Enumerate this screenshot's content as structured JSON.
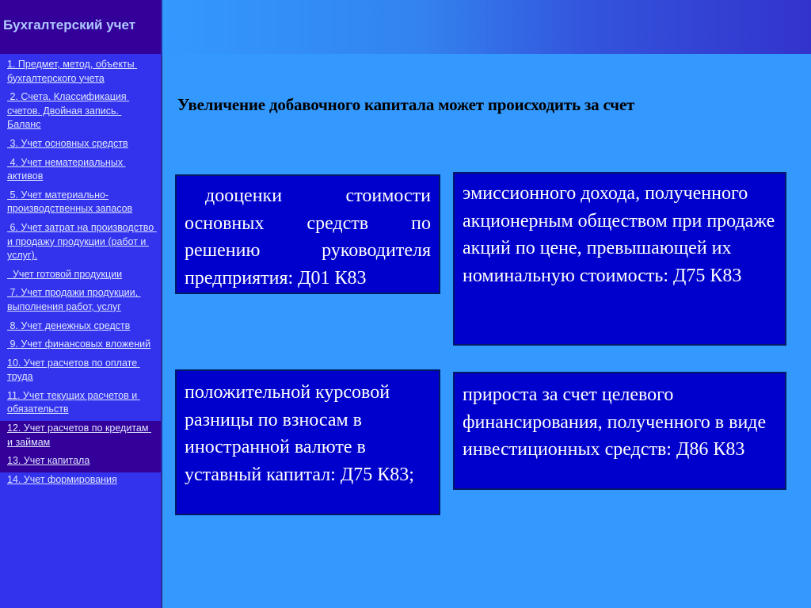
{
  "sidebar": {
    "title": "Бухгалтерский учет",
    "items": [
      {
        "label": "1. Предмет, метод, объекты бухгалтерского учета"
      },
      {
        "label": " 2. Счета. Классификация счетов. Двойная запись. Баланс"
      },
      {
        "label": " 3. Учет основных средств"
      },
      {
        "label": " 4. Учет нематериальных активов"
      },
      {
        "label": " 5. Учет материально-производственных запасов"
      },
      {
        "label": " 6. Учет затрат на производство и продажу продукции (работ и услуг)."
      },
      {
        "label": "  Учет готовой продукции"
      },
      {
        "label": " 7. Учет продажи продукции, выполнения работ, услуг"
      },
      {
        "label": " 8. Учет денежных средств"
      },
      {
        "label": " 9. Учет финансовых вложений"
      },
      {
        "label": "10. Учет расчетов по оплате труда"
      },
      {
        "label": "11. Учет текущих расчетов и обязательств"
      },
      {
        "label": "12. Учет расчетов по кредитам и займам",
        "active": true
      },
      {
        "label": "13. Учет капитала",
        "active": true
      },
      {
        "label": "14. Учет формирования"
      }
    ]
  },
  "main": {
    "title": "Увеличение добавочного капитала может происходить за счет",
    "boxes": [
      {
        "text": "дооценки стоимости основных средств по решению руководителя предприятия: Д01   К83"
      },
      {
        "text": "эмиссионного дохода, полученного акционерным обществом при продаже акций по цене, превышающей их номинальную стоимость: Д75 К83"
      },
      {
        "text": "положительной курсовой разницы по взносам в иностранной валюте в уставный капитал: Д75 К83;"
      },
      {
        "text": "прироста за счет целевого финансирования, полученного в виде инвестиционных средств: Д86   К83"
      }
    ]
  },
  "colors": {
    "sidebar": "#3333ee",
    "sidebar_header": "#330099",
    "main_bg": "#3399ff",
    "box_bg": "#0000cc"
  }
}
